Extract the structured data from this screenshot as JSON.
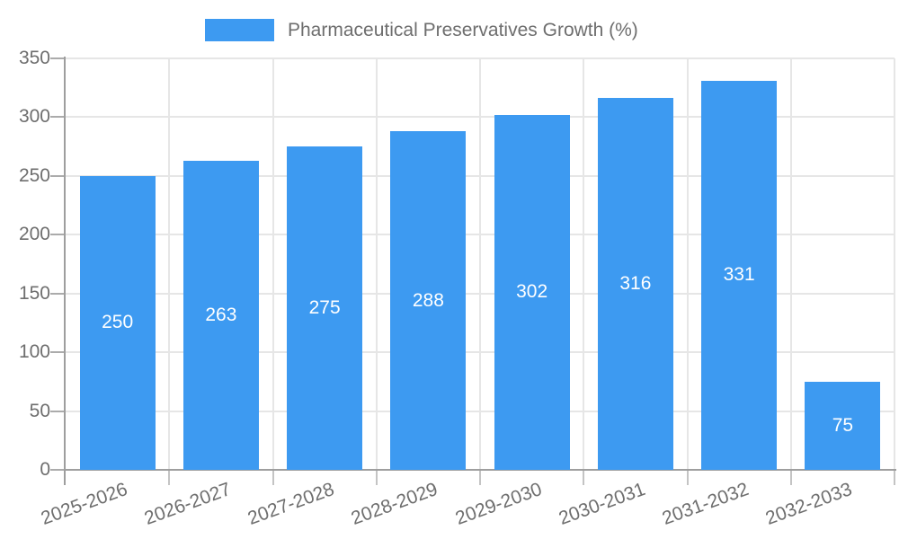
{
  "legend": {
    "label": "Pharmaceutical Preservatives Growth (%)"
  },
  "chart_data": {
    "type": "bar",
    "title": "Pharmaceutical Preservatives Growth (%)",
    "categories": [
      "2025-2026",
      "2026-2027",
      "2027-2028",
      "2028-2029",
      "2029-2030",
      "2030-2031",
      "2031-2032",
      "2032-2033"
    ],
    "values": [
      250,
      263,
      275,
      288,
      302,
      316,
      331,
      75
    ],
    "value_labels": [
      "250",
      "263",
      "275",
      "288",
      "302",
      "316",
      "331",
      "75"
    ],
    "xlabel": "",
    "ylabel": "",
    "ylim": [
      0,
      350
    ],
    "yticks": [
      0,
      50,
      100,
      150,
      200,
      250,
      300,
      350
    ],
    "grid": true,
    "legend_position": "top",
    "bar_color": "#3d9af1",
    "value_label_color": "#ffffff",
    "grid_color": "#e6e6e6",
    "axis_color": "#9e9e9e",
    "tick_label_color": "#6e6e6e"
  }
}
